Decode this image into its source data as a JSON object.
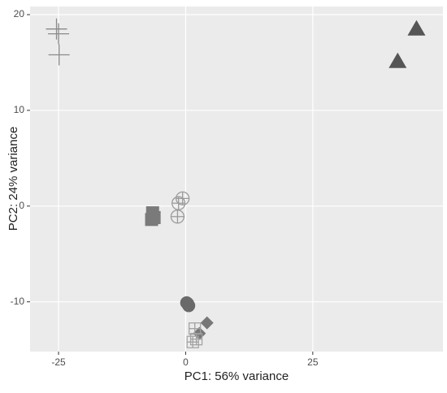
{
  "chart_data": {
    "type": "scatter",
    "x_label": "PC1: 56% variance",
    "y_label": "PC2: 24% variance",
    "xlim": [
      -30.6,
      50.6
    ],
    "ylim": [
      -15.2,
      20.85
    ],
    "xticks": [
      -25,
      0,
      25
    ],
    "yticks": [
      -10,
      0,
      10,
      20
    ],
    "grid": true,
    "series": [
      {
        "shape": "plus",
        "color": "#8a8a8a",
        "x": [
          -25.4,
          -25.0,
          -24.9
        ],
        "y": [
          18.5,
          18.0,
          15.8
        ]
      },
      {
        "shape": "triangle",
        "color": "#555555",
        "x": [
          41.7,
          45.4
        ],
        "y": [
          15.1,
          18.5
        ]
      },
      {
        "shape": "square",
        "color": "#7a7a7a",
        "x": [
          -6.5,
          -6.2,
          -6.7
        ],
        "y": [
          -0.7,
          -1.2,
          -1.4
        ]
      },
      {
        "shape": "circle-plus",
        "color": "#9a9a9a",
        "x": [
          -0.6,
          -1.4,
          -1.6
        ],
        "y": [
          0.8,
          0.3,
          -1.1
        ]
      },
      {
        "shape": "circle",
        "color": "#6a6a6a",
        "x": [
          0.2,
          0.4,
          0.6
        ],
        "y": [
          -10.1,
          -10.2,
          -10.4
        ]
      },
      {
        "shape": "diamond",
        "color": "#777777",
        "x": [
          4.2,
          2.7
        ],
        "y": [
          -12.2,
          -13.3
        ]
      },
      {
        "shape": "square-plus",
        "color": "#a0a0a0",
        "x": [
          1.8,
          2.1,
          1.4
        ],
        "y": [
          -12.8,
          -13.9,
          -14.2
        ]
      }
    ]
  }
}
